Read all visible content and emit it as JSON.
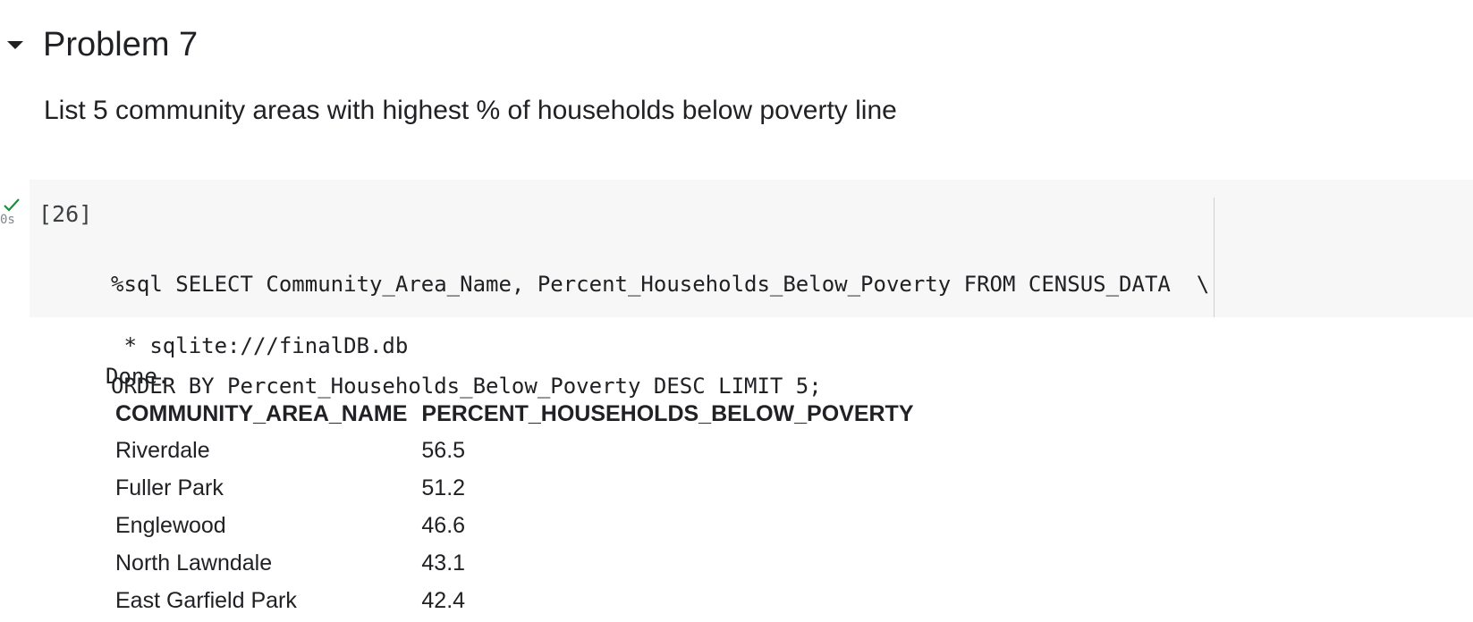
{
  "section": {
    "title": "Problem 7",
    "description": "List 5 community areas with highest % of households below poverty line"
  },
  "cell": {
    "status_icon": "check-icon",
    "status_color": "#1e8e3e",
    "exec_time": "0s",
    "exec_count": "[26]",
    "code_line_1": "%sql SELECT Community_Area_Name, Percent_Households_Below_Poverty FROM CENSUS_DATA  \\",
    "code_line_2": "ORDER BY Percent_Households_Below_Poverty DESC LIMIT 5;"
  },
  "output": {
    "line_1": " * sqlite:///finalDB.db",
    "line_2": "Done.",
    "table": {
      "headers": [
        "COMMUNITY_AREA_NAME",
        "PERCENT_HOUSEHOLDS_BELOW_POVERTY"
      ],
      "rows": [
        [
          "Riverdale",
          "56.5"
        ],
        [
          "Fuller Park",
          "51.2"
        ],
        [
          "Englewood",
          "46.6"
        ],
        [
          "North Lawndale",
          "43.1"
        ],
        [
          "East Garfield Park",
          "42.4"
        ]
      ]
    }
  }
}
